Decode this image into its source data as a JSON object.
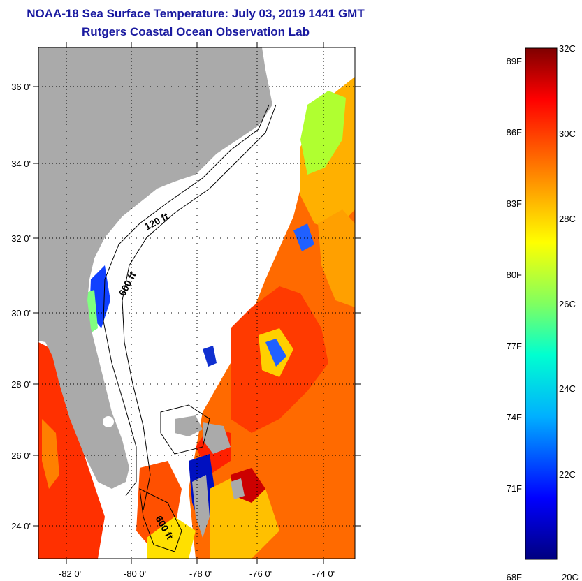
{
  "header": {
    "title": "NOAA-18 Sea Surface Temperature:  July 03, 2019 1441 GMT",
    "subtitle": "Rutgers Coastal Ocean Observation Lab"
  },
  "map": {
    "lat_ticks": [
      "36 0'",
      "34 0'",
      "32 0'",
      "30 0'",
      "28 0'",
      "26 0'",
      "24 0'"
    ],
    "lon_ticks": [
      "-82 0'",
      "-80 0'",
      "-78 0'",
      "-76 0'",
      "-74 0'"
    ],
    "contours": [
      "120 ft",
      "600 ft",
      "600 ft"
    ],
    "colors": {
      "land": "#aaaaaa",
      "no_data": "#ffffff",
      "grid": "#000000"
    }
  },
  "colorbar": {
    "fahrenheit": [
      "89F",
      "86F",
      "83F",
      "80F",
      "77F",
      "74F",
      "71F",
      "68F"
    ],
    "celsius": [
      "32C",
      "30C",
      "28C",
      "26C",
      "24C",
      "22C",
      "20C"
    ]
  }
}
